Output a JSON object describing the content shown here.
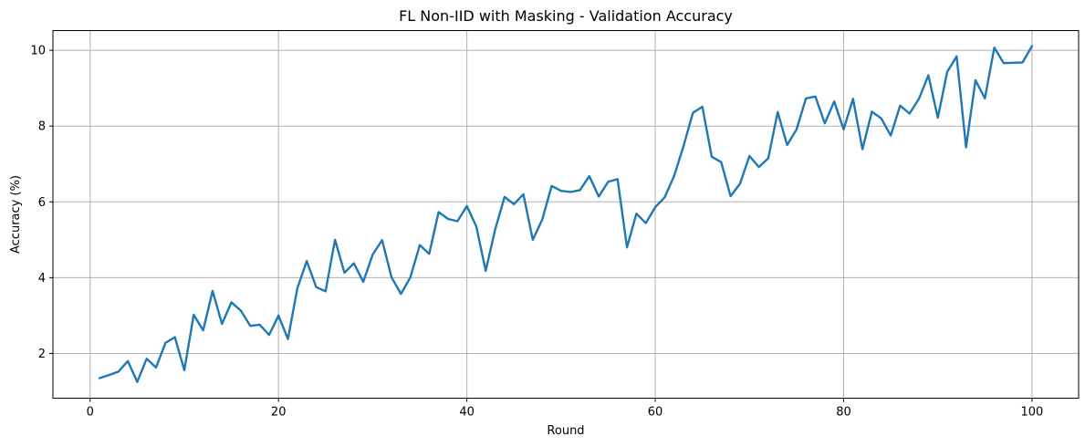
{
  "chart_data": {
    "type": "line",
    "title": "FL Non-IID with Masking - Validation Accuracy",
    "xlabel": "Round",
    "ylabel": "Accuracy (%)",
    "xlim": [
      -3.95,
      104.95
    ],
    "ylim": [
      0.82,
      10.52
    ],
    "xticks": [
      0,
      20,
      40,
      60,
      80,
      100
    ],
    "yticks": [
      2,
      4,
      6,
      8,
      10
    ],
    "grid": true,
    "line_color": "#1f77b4",
    "series": [
      {
        "x": [
          1,
          2,
          3,
          4,
          5,
          6,
          7,
          8,
          9,
          10,
          11,
          12,
          13,
          14,
          15,
          16,
          17,
          18,
          19,
          20,
          21,
          22,
          23,
          24,
          25,
          26,
          27,
          28,
          29,
          30,
          31,
          32,
          33,
          34,
          35,
          36,
          37,
          38,
          39,
          40,
          41,
          42,
          43,
          44,
          45,
          46,
          47,
          48,
          49,
          50,
          51,
          52,
          53,
          54,
          55,
          56,
          57,
          58,
          59,
          60,
          61,
          62,
          63,
          64,
          65,
          66,
          67,
          68,
          69,
          70,
          71,
          72,
          73,
          74,
          75,
          76,
          77,
          78,
          79,
          80,
          81,
          82,
          83,
          84,
          85,
          86,
          87,
          88,
          89,
          90,
          91,
          92,
          93,
          94,
          95,
          96,
          97,
          98,
          99,
          100
        ],
        "values": [
          1.35,
          1.43,
          1.52,
          1.8,
          1.25,
          1.86,
          1.63,
          2.28,
          2.43,
          1.56,
          3.02,
          2.61,
          3.65,
          2.78,
          3.35,
          3.13,
          2.73,
          2.76,
          2.49,
          3.0,
          2.38,
          3.72,
          4.44,
          3.75,
          3.64,
          5.0,
          4.13,
          4.38,
          3.89,
          4.61,
          4.99,
          4.01,
          3.57,
          4.01,
          4.86,
          4.63,
          5.73,
          5.55,
          5.49,
          5.89,
          5.35,
          4.18,
          5.27,
          6.13,
          5.94,
          6.2,
          5.0,
          5.53,
          6.42,
          6.29,
          6.26,
          6.31,
          6.68,
          6.14,
          6.53,
          6.6,
          4.8,
          5.69,
          5.44,
          5.86,
          6.12,
          6.68,
          7.47,
          8.35,
          8.51,
          7.19,
          7.05,
          6.15,
          6.48,
          7.21,
          6.92,
          7.15,
          8.37,
          7.5,
          7.91,
          8.73,
          8.78,
          8.07,
          8.65,
          7.91,
          8.72,
          7.39,
          8.38,
          8.2,
          7.75,
          8.54,
          8.33,
          8.72,
          9.34,
          8.22,
          9.43,
          9.84,
          7.44,
          9.21,
          8.73,
          10.07,
          9.66,
          9.67,
          9.68,
          10.11
        ]
      }
    ]
  }
}
